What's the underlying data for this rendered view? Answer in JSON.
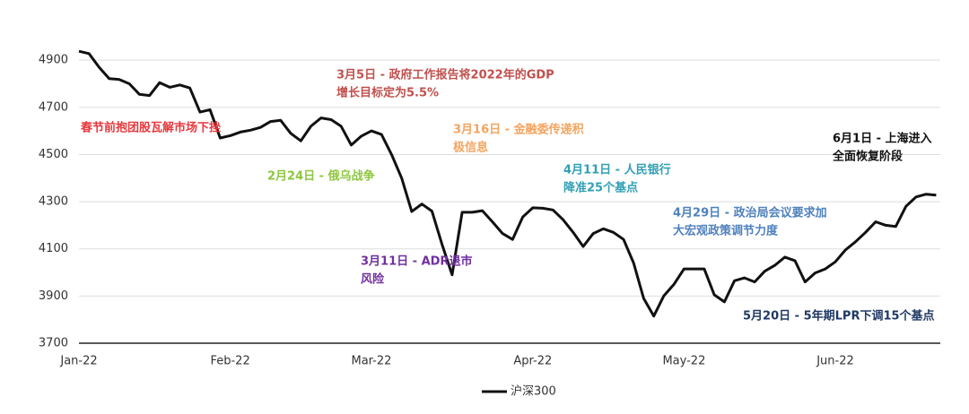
{
  "chart_data": {
    "type": "line",
    "categories": [
      "Jan-22",
      null,
      null,
      null,
      null,
      null,
      null,
      null,
      null,
      null,
      null,
      null,
      null,
      null,
      null,
      "Feb-22",
      null,
      null,
      null,
      null,
      null,
      null,
      null,
      null,
      null,
      null,
      null,
      null,
      null,
      "Mar-22",
      null,
      null,
      null,
      null,
      null,
      null,
      null,
      null,
      null,
      null,
      null,
      null,
      null,
      null,
      null,
      "Apr-22",
      null,
      null,
      null,
      null,
      null,
      null,
      null,
      null,
      null,
      null,
      null,
      null,
      null,
      null,
      "May-22",
      null,
      null,
      null,
      null,
      null,
      null,
      null,
      null,
      null,
      null,
      null,
      null,
      null,
      null,
      "Jun-22",
      null,
      null,
      null,
      null,
      null,
      null,
      null,
      null,
      null,
      null
    ],
    "series": [
      {
        "name": "沪深300",
        "color": "#111111",
        "values": [
          4938,
          4928,
          4870,
          4822,
          4818,
          4800,
          4755,
          4750,
          4805,
          4785,
          4795,
          4782,
          4680,
          4690,
          4570,
          4580,
          4595,
          4603,
          4615,
          4640,
          4645,
          4590,
          4558,
          4620,
          4655,
          4648,
          4620,
          4540,
          4578,
          4600,
          4585,
          4500,
          4400,
          4258,
          4290,
          4260,
          4120,
          3990,
          4255,
          4255,
          4262,
          4215,
          4165,
          4140,
          4235,
          4274,
          4272,
          4265,
          4224,
          4170,
          4110,
          4165,
          4185,
          4170,
          4140,
          4040,
          3890,
          3815,
          3901,
          3950,
          4015,
          4015,
          4015,
          3905,
          3875,
          3965,
          3977,
          3960,
          4005,
          4030,
          4065,
          4050,
          3960,
          3998,
          4015,
          4045,
          4095,
          4130,
          4170,
          4215,
          4200,
          4195,
          4280,
          4320,
          4332,
          4328
        ]
      }
    ],
    "ylim": [
      3700,
      4950
    ],
    "yticks": [
      3700,
      3900,
      4100,
      4300,
      4500,
      4700,
      4900
    ],
    "grid": true,
    "annotations": [
      {
        "lines": [
          "春节前抱团股瓦解市场下挫"
        ],
        "color": "#e8383d"
      },
      {
        "lines": [
          "3月5日 - 政府工作报告将2022年的GDP",
          "增长目标定为5.5%"
        ],
        "color": "#c0504d"
      },
      {
        "lines": [
          "2月24日 - 俄乌战争"
        ],
        "color": "#8dc63f"
      },
      {
        "lines": [
          "3月16日 - 金融委传递积",
          "极信息"
        ],
        "color": "#f4a460"
      },
      {
        "lines": [
          "3月11日 - ADR退市",
          "风险"
        ],
        "color": "#7030a0"
      },
      {
        "lines": [
          "4月11日 - 人民银行",
          "降准25个基点"
        ],
        "color": "#31a0b4"
      },
      {
        "lines": [
          "4月29日 - 政治局会议要求加",
          "大宏观政策调节力度"
        ],
        "color": "#4f81bd"
      },
      {
        "lines": [
          "6月1日 - 上海进入",
          "全面恢复阶段"
        ],
        "color": "#111111"
      },
      {
        "lines": [
          "5月20日 - 5年期LPR下调15个基点"
        ],
        "color": "#1f3864"
      }
    ]
  }
}
